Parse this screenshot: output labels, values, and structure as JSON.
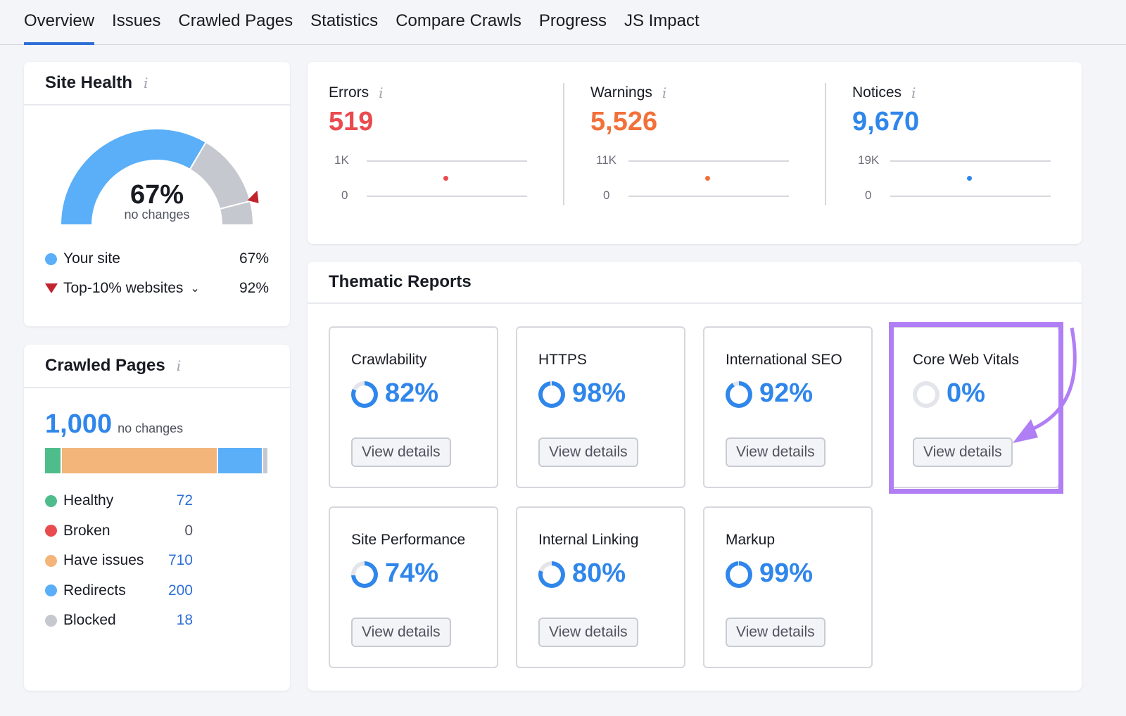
{
  "tabs": [
    "Overview",
    "Issues",
    "Crawled Pages",
    "Statistics",
    "Compare Crawls",
    "Progress",
    "JS Impact"
  ],
  "active_tab": "Overview",
  "site_health": {
    "title": "Site Health",
    "value": "67%",
    "sub": "no changes",
    "score": 67,
    "top10": 92,
    "legend": [
      {
        "label": "Your site",
        "value": "67%",
        "color": "#5aaff8"
      },
      {
        "label": "Top-10% websites",
        "value": "92%",
        "color": "#c1232f"
      }
    ]
  },
  "crawled": {
    "title": "Crawled Pages",
    "total": "1,000",
    "sub": "no changes",
    "items": [
      {
        "label": "Healthy",
        "value": "72",
        "color": "#4fbd8b",
        "n": 72
      },
      {
        "label": "Broken",
        "value": "0",
        "color": "#e94b4f",
        "n": 0
      },
      {
        "label": "Have issues",
        "value": "710",
        "color": "#f3b57a",
        "n": 710
      },
      {
        "label": "Redirects",
        "value": "200",
        "color": "#5aaff8",
        "n": 200
      },
      {
        "label": "Blocked",
        "value": "18",
        "color": "#c6c8cf",
        "n": 18
      }
    ]
  },
  "metrics": [
    {
      "label": "Errors",
      "value": "519",
      "color": "#e94b4f",
      "max": "1K",
      "min": "0"
    },
    {
      "label": "Warnings",
      "value": "5,526",
      "color": "#f2703a",
      "max": "11K",
      "min": "0"
    },
    {
      "label": "Notices",
      "value": "9,670",
      "color": "#2f86eb",
      "max": "19K",
      "min": "0"
    }
  ],
  "thematic": {
    "title": "Thematic Reports",
    "button": "View details",
    "reports": [
      {
        "name": "Crawlability",
        "pct": "82%",
        "p": 82
      },
      {
        "name": "HTTPS",
        "pct": "98%",
        "p": 98
      },
      {
        "name": "International SEO",
        "pct": "92%",
        "p": 92
      },
      {
        "name": "Core Web Vitals",
        "pct": "0%",
        "p": 0
      },
      {
        "name": "Site Performance",
        "pct": "74%",
        "p": 74
      },
      {
        "name": "Internal Linking",
        "pct": "80%",
        "p": 80
      },
      {
        "name": "Markup",
        "pct": "99%",
        "p": 99
      }
    ]
  },
  "highlight_color": "#b07ef5"
}
